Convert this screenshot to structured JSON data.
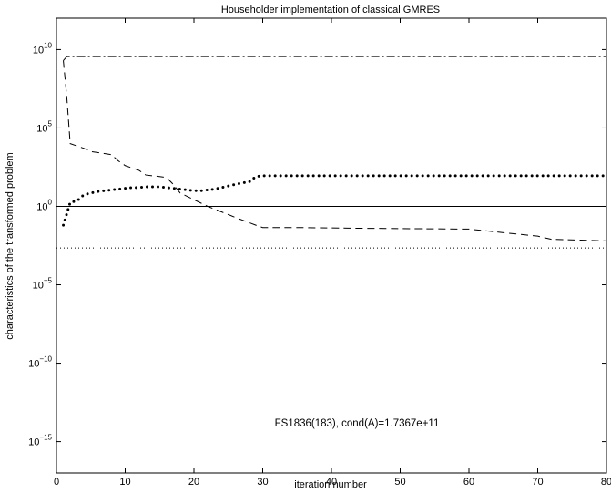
{
  "chart_data": {
    "type": "line",
    "title": "Householder implementation of classical GMRES",
    "xlabel": "iteration number",
    "ylabel": "characteristics of the transformed problem",
    "xlim": [
      0,
      80
    ],
    "ylim_log10": [
      -17,
      12
    ],
    "y_scale": "log",
    "grid": false,
    "x_ticks": [
      "0",
      "10",
      "20",
      "30",
      "40",
      "50",
      "60",
      "70",
      "80"
    ],
    "y_ticks": [
      {
        "base": "10",
        "exp": "10"
      },
      {
        "base": "10",
        "exp": "5"
      },
      {
        "base": "10",
        "exp": "0"
      },
      {
        "base": "10",
        "exp": "−5"
      },
      {
        "base": "10",
        "exp": "−10"
      },
      {
        "base": "10",
        "exp": "−15"
      }
    ],
    "annotation": "FS1836(183), cond(A)=1.7367e+11",
    "series": [
      {
        "style": "dashdot",
        "x": [
          1,
          1.5,
          80
        ],
        "log10_y": [
          9.3,
          9.55,
          9.55
        ]
      },
      {
        "style": "dashed",
        "x": [
          1,
          1.5,
          2,
          4,
          5,
          8,
          9,
          10,
          12,
          13,
          15,
          16,
          17,
          18,
          22,
          26,
          29,
          30,
          35,
          45,
          60,
          70,
          72,
          80
        ],
        "log10_y": [
          9.3,
          7.0,
          4.0,
          3.7,
          3.5,
          3.3,
          2.9,
          2.6,
          2.3,
          2.0,
          1.9,
          1.85,
          1.4,
          0.85,
          0.0,
          -0.7,
          -1.2,
          -1.35,
          -1.35,
          -1.4,
          -1.45,
          -1.9,
          -2.1,
          -2.2
        ]
      },
      {
        "style": "dotted-thick",
        "x": [
          1,
          2,
          3,
          4,
          5,
          6,
          7,
          8,
          9,
          10,
          11,
          12,
          13,
          14,
          15,
          16,
          17,
          18,
          19,
          20,
          21,
          22,
          23,
          24,
          25,
          26,
          27,
          28,
          29,
          30,
          40,
          50,
          60,
          70,
          80
        ],
        "log10_y": [
          -1.2,
          0.25,
          0.35,
          0.75,
          0.85,
          0.95,
          1.0,
          1.05,
          1.1,
          1.15,
          1.2,
          1.2,
          1.25,
          1.25,
          1.25,
          1.2,
          1.15,
          1.1,
          1.05,
          1.0,
          1.0,
          1.05,
          1.1,
          1.2,
          1.3,
          1.4,
          1.5,
          1.55,
          1.9,
          1.95,
          1.95,
          1.95,
          1.95,
          1.95,
          1.95
        ]
      },
      {
        "style": "solid",
        "x": [
          0,
          80
        ],
        "log10_y": [
          0,
          0
        ]
      },
      {
        "style": "dotted-thin",
        "x": [
          0,
          80
        ],
        "log10_y": [
          -2.65,
          -2.65
        ]
      }
    ]
  }
}
